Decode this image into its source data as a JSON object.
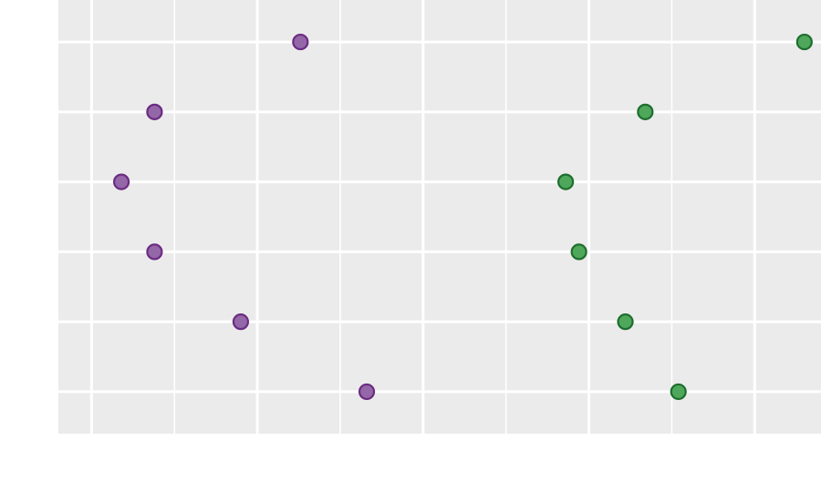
{
  "chart_data": {
    "type": "scatter",
    "title": "",
    "xlabel": "",
    "ylabel": "",
    "x_tick_labels": [],
    "y_tick_labels": [],
    "xlim": [
      -0.05,
      1.1
    ],
    "ylim": [
      0.4,
      6.6
    ],
    "grid": true,
    "background": "#EBEBEB",
    "series": [
      {
        "color": "#9467A8",
        "stroke": "#6B2C82",
        "points": [
          {
            "x": 0.315,
            "y": 6
          },
          {
            "x": 0.095,
            "y": 5
          },
          {
            "x": 0.045,
            "y": 4
          },
          {
            "x": 0.095,
            "y": 3
          },
          {
            "x": 0.225,
            "y": 2
          },
          {
            "x": 0.415,
            "y": 1
          }
        ]
      },
      {
        "color": "#4EA75A",
        "stroke": "#1E6E2E",
        "points": [
          {
            "x": 1.075,
            "y": 6
          },
          {
            "x": 0.835,
            "y": 5
          },
          {
            "x": 0.715,
            "y": 4
          },
          {
            "x": 0.735,
            "y": 3
          },
          {
            "x": 0.805,
            "y": 2
          },
          {
            "x": 0.885,
            "y": 1
          }
        ]
      }
    ]
  }
}
